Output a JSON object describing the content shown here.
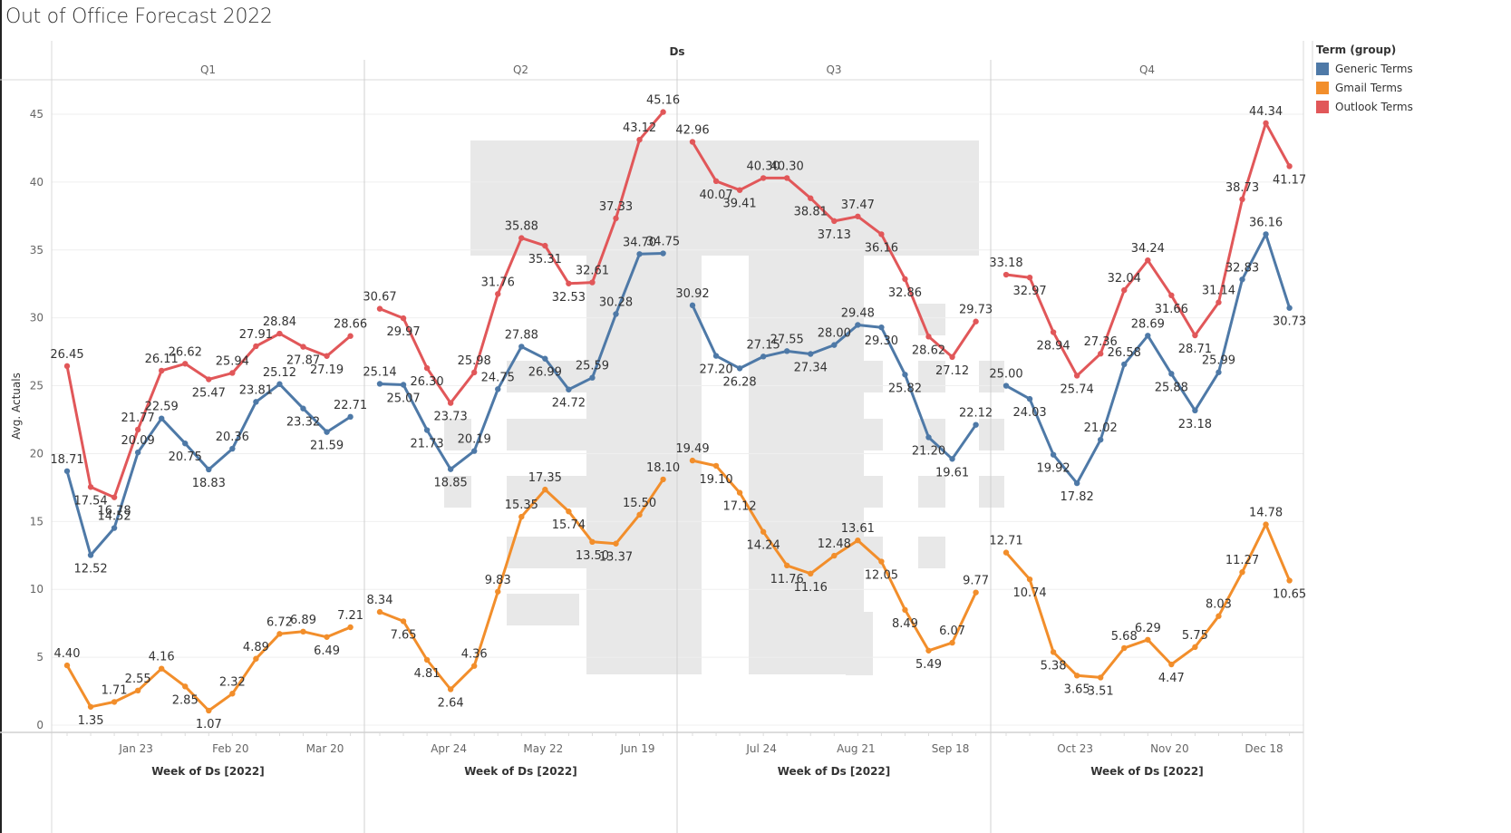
{
  "title": "Out of Office Forecast 2022",
  "chart_data": {
    "type": "line",
    "title": "Out of Office Forecast 2022",
    "column_header": "Ds",
    "xlabel": "Week of Ds [2022]",
    "ylabel": "Avg. Actuals",
    "ylim": [
      0,
      45
    ],
    "yticks": [
      0,
      5,
      10,
      15,
      20,
      25,
      30,
      35,
      40,
      45
    ],
    "grid": true,
    "legend_title": "Term (group)",
    "legend_position": "right",
    "panes": [
      {
        "label": "Q1",
        "tick_labels": [
          "Jan 23",
          "Feb 20",
          "Mar 20"
        ],
        "tick_indices": [
          3,
          7,
          11
        ],
        "series": {
          "Generic Terms": [
            18.71,
            12.52,
            14.52,
            20.09,
            22.59,
            20.75,
            18.83,
            20.36,
            23.81,
            25.12,
            23.32,
            21.59,
            22.71
          ],
          "Gmail Terms": [
            4.4,
            1.35,
            1.71,
            2.55,
            4.16,
            2.85,
            1.07,
            2.32,
            4.89,
            6.72,
            6.89,
            6.49,
            7.21
          ],
          "Outlook Terms": [
            26.45,
            17.54,
            16.78,
            21.77,
            26.11,
            26.62,
            25.47,
            25.94,
            27.91,
            28.84,
            27.87,
            27.19,
            28.66
          ]
        }
      },
      {
        "label": "Q2",
        "tick_labels": [
          "Apr 24",
          "May 22",
          "Jun 19"
        ],
        "tick_indices": [
          3,
          7,
          11
        ],
        "series": {
          "Generic Terms": [
            25.14,
            25.07,
            21.73,
            18.85,
            20.19,
            24.75,
            27.88,
            26.99,
            24.72,
            25.59,
            30.28,
            34.7,
            34.75
          ],
          "Gmail Terms": [
            8.34,
            7.65,
            4.81,
            2.64,
            4.36,
            9.83,
            15.35,
            17.35,
            15.74,
            13.5,
            13.37,
            15.5,
            18.1
          ],
          "Outlook Terms": [
            30.67,
            29.97,
            26.3,
            23.73,
            25.98,
            31.76,
            35.88,
            35.31,
            32.53,
            32.61,
            37.33,
            43.12,
            45.16
          ]
        }
      },
      {
        "label": "Q3",
        "tick_labels": [
          "Jul 24",
          "Aug 21",
          "Sep 18"
        ],
        "tick_indices": [
          3,
          7,
          11
        ],
        "series": {
          "Generic Terms": [
            30.92,
            27.2,
            26.28,
            27.15,
            27.55,
            27.34,
            28.0,
            29.48,
            29.3,
            25.82,
            21.2,
            19.61,
            22.12
          ],
          "Gmail Terms": [
            19.49,
            19.1,
            17.12,
            14.24,
            11.76,
            11.16,
            12.48,
            13.61,
            12.05,
            8.49,
            5.49,
            6.07,
            9.77
          ],
          "Outlook Terms": [
            42.96,
            40.07,
            39.41,
            40.3,
            40.3,
            38.81,
            37.13,
            37.47,
            36.16,
            32.86,
            28.62,
            27.12,
            29.73
          ]
        }
      },
      {
        "label": "Q4",
        "tick_labels": [
          "Oct 23",
          "Nov 20",
          "Dec 18"
        ],
        "tick_indices": [
          3,
          7,
          11
        ],
        "series": {
          "Generic Terms": [
            25.0,
            24.03,
            19.92,
            17.82,
            21.02,
            26.58,
            28.69,
            25.88,
            23.18,
            25.99,
            32.83,
            36.16,
            30.73
          ],
          "Gmail Terms": [
            12.71,
            10.74,
            5.38,
            3.65,
            3.51,
            5.68,
            6.29,
            4.47,
            5.75,
            8.03,
            11.27,
            14.78,
            10.65
          ],
          "Outlook Terms": [
            33.18,
            32.97,
            28.94,
            25.74,
            27.36,
            32.04,
            34.24,
            31.66,
            28.71,
            31.14,
            38.73,
            44.34,
            41.17
          ]
        }
      }
    ],
    "series_colors": {
      "Generic Terms": "#4e79a7",
      "Gmail Terms": "#f28e2b",
      "Outlook Terms": "#e15759"
    },
    "legend": [
      {
        "name": "Generic Terms",
        "color": "#4e79a7"
      },
      {
        "name": "Gmail Terms",
        "color": "#f28e2b"
      },
      {
        "name": "Outlook Terms",
        "color": "#e15759"
      }
    ]
  }
}
